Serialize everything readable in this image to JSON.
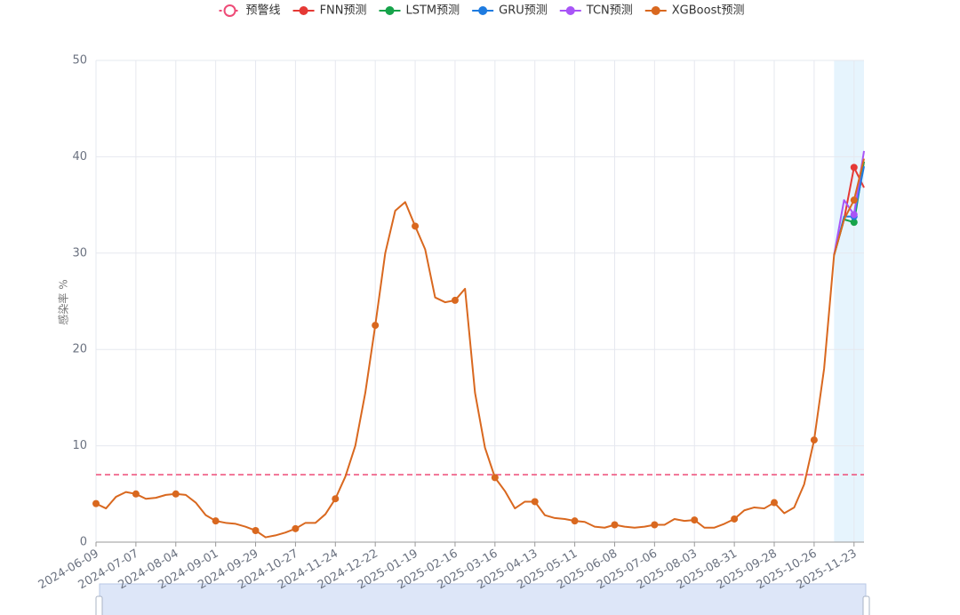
{
  "chart_data": {
    "type": "line",
    "ylabel": "感染率 %",
    "ylim": [
      0,
      50
    ],
    "yticks": [
      0,
      10,
      20,
      30,
      40,
      50
    ],
    "grid": true,
    "x": [
      "2024-06-09",
      null,
      null,
      null,
      "2024-07-07",
      null,
      null,
      null,
      "2024-08-04",
      null,
      null,
      null,
      "2024-09-01",
      null,
      null,
      null,
      "2024-09-29",
      null,
      null,
      null,
      "2024-10-27",
      null,
      null,
      null,
      "2024-11-24",
      null,
      null,
      null,
      "2024-12-22",
      null,
      null,
      null,
      "2025-01-19",
      null,
      null,
      null,
      "2025-02-16",
      null,
      null,
      null,
      "2025-03-16",
      null,
      null,
      null,
      "2025-04-13",
      null,
      null,
      null,
      "2025-05-11",
      null,
      null,
      null,
      "2025-06-08",
      null,
      null,
      null,
      "2025-07-06",
      null,
      null,
      null,
      "2025-08-03",
      null,
      null,
      null,
      "2025-08-31",
      null,
      null,
      null,
      "2025-09-28",
      null,
      null,
      null,
      "2025-10-26",
      null,
      null,
      null,
      "2025-11-23",
      null
    ],
    "threshold": {
      "name": "预警线",
      "value": 7,
      "color": "#ee4b77"
    },
    "forecast_area_color": "#e6f4fd",
    "series": [
      {
        "name": "FNN预测",
        "color": "#e53935",
        "values": [
          null,
          null,
          null,
          null,
          null,
          null,
          null,
          null,
          null,
          null,
          null,
          null,
          null,
          null,
          null,
          null,
          null,
          null,
          null,
          null,
          null,
          null,
          null,
          null,
          null,
          null,
          null,
          null,
          null,
          null,
          null,
          null,
          null,
          null,
          null,
          null,
          null,
          null,
          null,
          null,
          null,
          null,
          null,
          null,
          null,
          null,
          null,
          null,
          null,
          null,
          null,
          null,
          null,
          null,
          null,
          null,
          null,
          null,
          null,
          null,
          null,
          null,
          null,
          null,
          null,
          null,
          null,
          null,
          null,
          null,
          null,
          null,
          null,
          null,
          29.8,
          33.5,
          38.9,
          36.8
        ]
      },
      {
        "name": "LSTM预测",
        "color": "#16a34a",
        "values": [
          null,
          null,
          null,
          null,
          null,
          null,
          null,
          null,
          null,
          null,
          null,
          null,
          null,
          null,
          null,
          null,
          null,
          null,
          null,
          null,
          null,
          null,
          null,
          null,
          null,
          null,
          null,
          null,
          null,
          null,
          null,
          null,
          null,
          null,
          null,
          null,
          null,
          null,
          null,
          null,
          null,
          null,
          null,
          null,
          null,
          null,
          null,
          null,
          null,
          null,
          null,
          null,
          null,
          null,
          null,
          null,
          null,
          null,
          null,
          null,
          null,
          null,
          null,
          null,
          null,
          null,
          null,
          null,
          null,
          null,
          null,
          null,
          null,
          null,
          29.8,
          33.5,
          33.2,
          39.5
        ]
      },
      {
        "name": "GRU预测",
        "color": "#1e7be0",
        "values": [
          null,
          null,
          null,
          null,
          null,
          null,
          null,
          null,
          null,
          null,
          null,
          null,
          null,
          null,
          null,
          null,
          null,
          null,
          null,
          null,
          null,
          null,
          null,
          null,
          null,
          null,
          null,
          null,
          null,
          null,
          null,
          null,
          null,
          null,
          null,
          null,
          null,
          null,
          null,
          null,
          null,
          null,
          null,
          null,
          null,
          null,
          null,
          null,
          null,
          null,
          null,
          null,
          null,
          null,
          null,
          null,
          null,
          null,
          null,
          null,
          null,
          null,
          null,
          null,
          null,
          null,
          null,
          null,
          null,
          null,
          null,
          null,
          null,
          null,
          29.8,
          33.8,
          33.8,
          39.0
        ]
      },
      {
        "name": "TCN预测",
        "color": "#a855f7",
        "values": [
          null,
          null,
          null,
          null,
          null,
          null,
          null,
          null,
          null,
          null,
          null,
          null,
          null,
          null,
          null,
          null,
          null,
          null,
          null,
          null,
          null,
          null,
          null,
          null,
          null,
          null,
          null,
          null,
          null,
          null,
          null,
          null,
          null,
          null,
          null,
          null,
          null,
          null,
          null,
          null,
          null,
          null,
          null,
          null,
          null,
          null,
          null,
          null,
          null,
          null,
          null,
          null,
          null,
          null,
          null,
          null,
          null,
          null,
          null,
          null,
          null,
          null,
          null,
          null,
          null,
          null,
          null,
          null,
          null,
          null,
          null,
          null,
          null,
          null,
          29.8,
          35.5,
          34.0,
          40.6
        ]
      },
      {
        "name": "XGBoost预测",
        "color": "#d9681f",
        "values": [
          4.0,
          3.5,
          4.7,
          5.2,
          5.0,
          4.5,
          4.6,
          4.9,
          5.0,
          4.9,
          4.1,
          2.8,
          2.2,
          2.0,
          1.9,
          1.6,
          1.2,
          0.5,
          0.7,
          1.0,
          1.4,
          2.0,
          2.0,
          2.9,
          4.5,
          6.8,
          10.0,
          15.5,
          22.5,
          30.0,
          34.4,
          35.3,
          32.8,
          30.4,
          25.4,
          24.9,
          25.1,
          26.3,
          15.5,
          9.8,
          6.7,
          5.3,
          3.5,
          4.2,
          4.2,
          2.8,
          2.5,
          2.4,
          2.2,
          2.1,
          1.6,
          1.5,
          1.8,
          1.6,
          1.5,
          1.6,
          1.8,
          1.8,
          2.4,
          2.2,
          2.3,
          1.5,
          1.5,
          1.9,
          2.4,
          3.3,
          3.6,
          3.5,
          4.1,
          3.0,
          3.6,
          6.0,
          10.6,
          18.0,
          29.8,
          33.5,
          35.5,
          39.8
        ]
      }
    ]
  }
}
